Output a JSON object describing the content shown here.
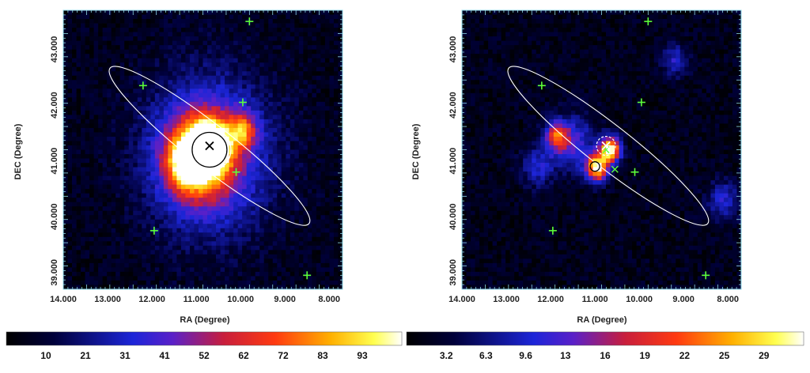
{
  "chart_data": [
    {
      "type": "heatmap",
      "panel": "left",
      "xlabel": "RA (Degree)",
      "ylabel": "DEC (Degree)",
      "xlim": [
        14.0,
        7.7
      ],
      "ylim": [
        38.7,
        43.7
      ],
      "xticks": [
        "14.000",
        "13.000",
        "12.000",
        "11.000",
        "10.000",
        "9.000",
        "8.000"
      ],
      "xtick_values": [
        14,
        13,
        12,
        11,
        10,
        9,
        8
      ],
      "yticks": [
        "39.000",
        "40.000",
        "41.000",
        "42.000",
        "43.000"
      ],
      "ytick_values": [
        39,
        40,
        41,
        42,
        43
      ],
      "colorbar": {
        "labels": [
          "10",
          "21",
          "31",
          "41",
          "52",
          "62",
          "72",
          "83",
          "93"
        ],
        "range": [
          0,
          103
        ]
      },
      "ellipse": {
        "center": [
          10.7,
          41.27
        ],
        "semi_major_deg": 2.85,
        "semi_minor_deg": 0.48,
        "angle_deg": 38
      },
      "green_plus_sources": [
        [
          9.8,
          43.5
        ],
        [
          12.2,
          42.35
        ],
        [
          9.95,
          42.05
        ],
        [
          10.1,
          40.8
        ],
        [
          11.95,
          39.75
        ],
        [
          8.5,
          38.95
        ]
      ],
      "black_x": [
        10.7,
        41.27
      ],
      "circle_white": [
        10.7,
        41.2
      ],
      "circle_black": [
        10.7,
        41.2
      ],
      "emission_blobs": [
        {
          "ra": 10.72,
          "dec": 41.25,
          "peak": 100,
          "sigma": 0.28
        },
        {
          "ra": 10.9,
          "dec": 41.1,
          "peak": 62,
          "sigma": 0.55
        },
        {
          "ra": 11.2,
          "dec": 40.95,
          "peak": 55,
          "sigma": 0.3
        },
        {
          "ra": 9.95,
          "dec": 41.55,
          "peak": 48,
          "sigma": 0.22
        },
        {
          "ra": 10.7,
          "dec": 41.1,
          "peak": 38,
          "sigma": 1.0
        }
      ]
    },
    {
      "type": "heatmap",
      "panel": "right",
      "xlabel": "RA (Degree)",
      "ylabel": "DEC (Degree)",
      "xlim": [
        14.0,
        7.7
      ],
      "ylim": [
        38.7,
        43.7
      ],
      "xticks": [
        "14.000",
        "13.000",
        "12.000",
        "11.000",
        "10.000",
        "9.000",
        "8.000"
      ],
      "xtick_values": [
        14,
        13,
        12,
        11,
        10,
        9,
        8
      ],
      "yticks": [
        "39.000",
        "40.000",
        "41.000",
        "42.000",
        "43.000"
      ],
      "ytick_values": [
        39,
        40,
        41,
        42,
        43
      ],
      "colorbar": {
        "labels": [
          "3.2",
          "6.3",
          "9.6",
          "13",
          "16",
          "19",
          "22",
          "25",
          "29"
        ],
        "range": [
          0,
          32
        ]
      },
      "ellipse": {
        "center": [
          10.7,
          41.27
        ],
        "semi_major_deg": 2.85,
        "semi_minor_deg": 0.48,
        "angle_deg": 38
      },
      "green_plus_sources": [
        [
          9.8,
          43.5
        ],
        [
          12.2,
          42.35
        ],
        [
          9.95,
          42.05
        ],
        [
          10.1,
          40.8
        ],
        [
          11.95,
          39.75
        ],
        [
          8.5,
          38.95
        ]
      ],
      "green_x_sources": [
        [
          10.75,
          41.2
        ],
        [
          10.55,
          40.85
        ]
      ],
      "white_x": [
        10.75,
        41.27
      ],
      "circle_white_dashed": [
        10.75,
        41.27
      ],
      "circle_black": [
        11.0,
        40.9
      ],
      "emission_blobs": [
        {
          "ra": 10.65,
          "dec": 41.2,
          "peak": 30,
          "sigma": 0.16
        },
        {
          "ra": 10.95,
          "dec": 40.88,
          "peak": 29,
          "sigma": 0.17
        },
        {
          "ra": 11.85,
          "dec": 41.45,
          "peak": 17,
          "sigma": 0.18
        },
        {
          "ra": 11.5,
          "dec": 41.3,
          "peak": 10,
          "sigma": 0.35
        },
        {
          "ra": 12.3,
          "dec": 40.9,
          "peak": 8,
          "sigma": 0.25
        },
        {
          "ra": 9.2,
          "dec": 42.8,
          "peak": 8,
          "sigma": 0.2
        },
        {
          "ra": 8.1,
          "dec": 40.3,
          "peak": 8,
          "sigma": 0.25
        }
      ]
    }
  ]
}
